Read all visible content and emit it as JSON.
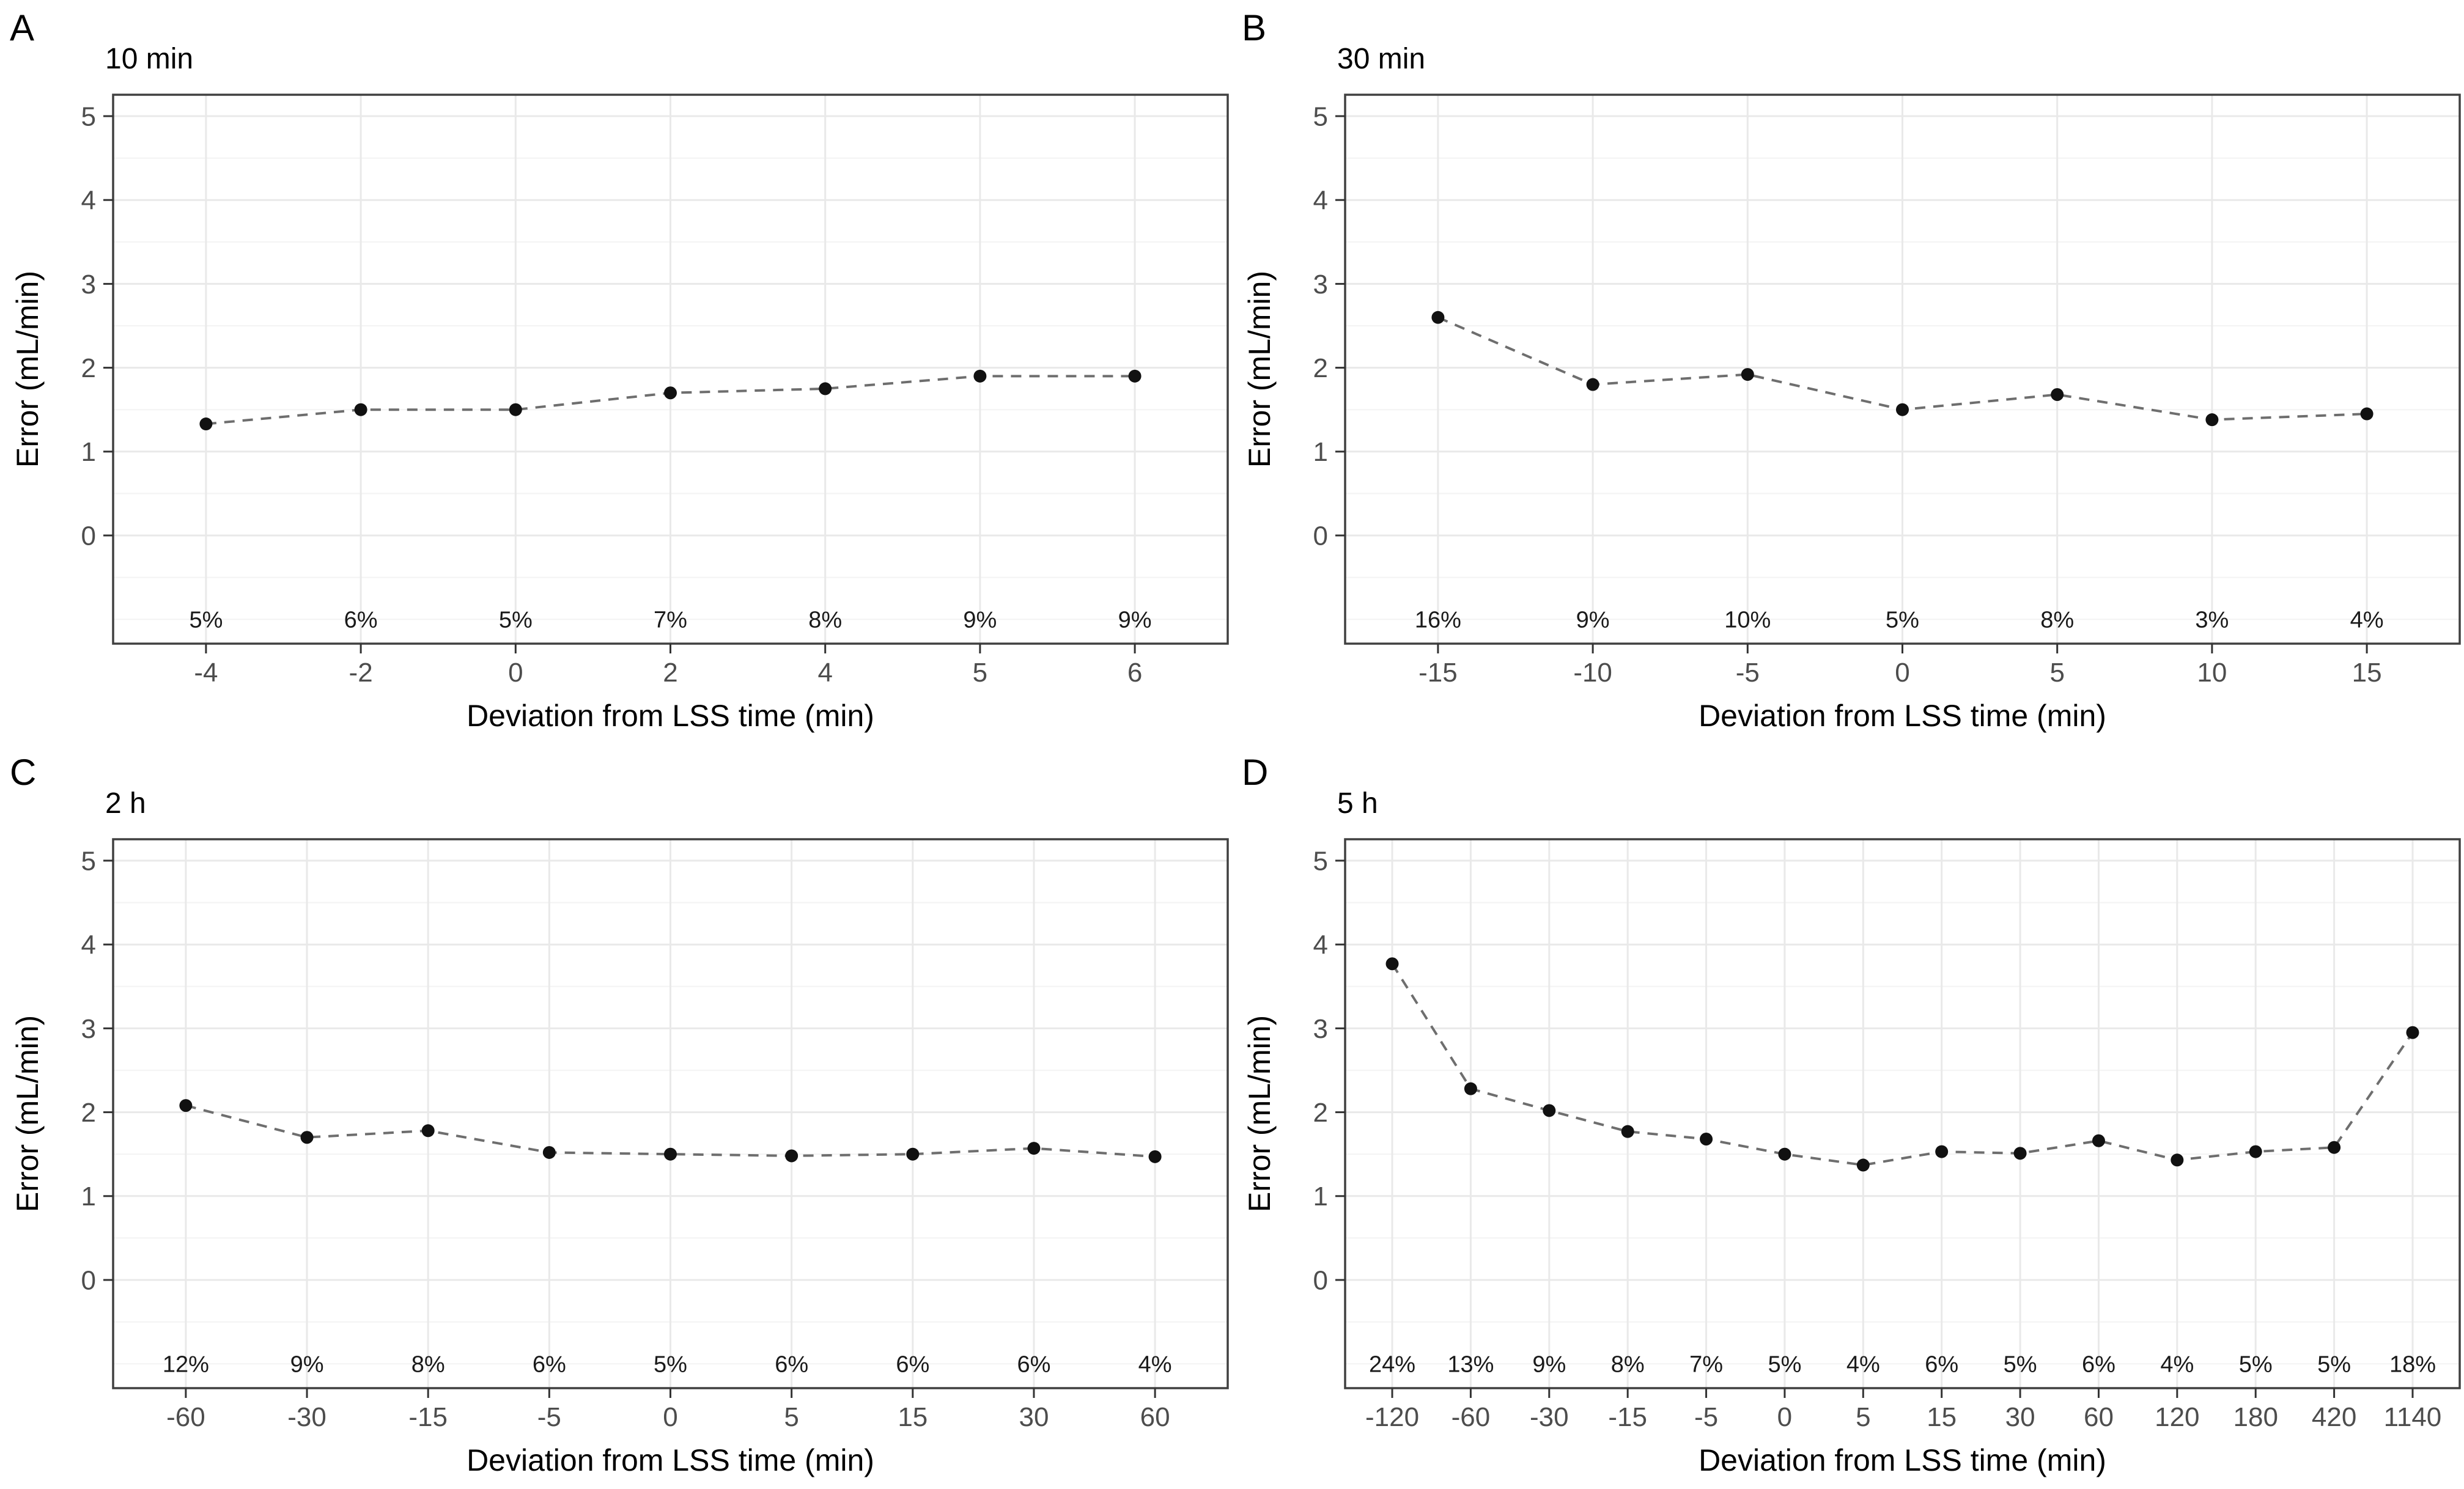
{
  "figure": {
    "xlabel": "Deviation from LSS time (min)",
    "ylabel": "Error (mL/min)",
    "yticks": [
      0,
      1,
      2,
      3,
      4,
      5
    ],
    "ylim": [
      -1.3,
      5.27
    ],
    "grid": true,
    "legend": "none",
    "colors": {
      "background": "#ffffff",
      "panel_border": "#404040",
      "grid_major": "#e9e9e9",
      "grid_minor": "#f4f4f4",
      "line": "#6e6e6e",
      "point": "#111111",
      "tick_label": "#4d4d4d",
      "tick_mark": "#333333",
      "text": "#000000"
    }
  },
  "chart_data": [
    {
      "type": "line",
      "panel_tag": "A",
      "title": "10 min",
      "xlabel": "Deviation from LSS time (min)",
      "ylabel": "Error (mL/min)",
      "line_style": "dashed",
      "categories": [
        "-4",
        "-2",
        "0",
        "2",
        "4",
        "5",
        "6"
      ],
      "values": [
        1.33,
        1.5,
        1.5,
        1.7,
        1.75,
        1.9,
        1.9
      ],
      "percent_labels": [
        "5%",
        "6%",
        "5%",
        "7%",
        "8%",
        "9%",
        "9%"
      ],
      "ylim": [
        -1.3,
        5.27
      ],
      "yticks": [
        0,
        1,
        2,
        3,
        4,
        5
      ]
    },
    {
      "type": "line",
      "panel_tag": "B",
      "title": "30 min",
      "xlabel": "Deviation from LSS time (min)",
      "ylabel": "Error (mL/min)",
      "line_style": "dashed",
      "categories": [
        "-15",
        "-10",
        "-5",
        "0",
        "5",
        "10",
        "15"
      ],
      "values": [
        2.6,
        1.8,
        1.92,
        1.5,
        1.68,
        1.38,
        1.45
      ],
      "percent_labels": [
        "16%",
        "9%",
        "10%",
        "5%",
        "8%",
        "3%",
        "4%"
      ],
      "ylim": [
        -1.3,
        5.27
      ],
      "yticks": [
        0,
        1,
        2,
        3,
        4,
        5
      ]
    },
    {
      "type": "line",
      "panel_tag": "C",
      "title": "2 h",
      "xlabel": "Deviation from LSS time (min)",
      "ylabel": "Error (mL/min)",
      "line_style": "dashed",
      "categories": [
        "-60",
        "-30",
        "-15",
        "-5",
        "0",
        "5",
        "15",
        "30",
        "60"
      ],
      "values": [
        2.08,
        1.7,
        1.78,
        1.52,
        1.5,
        1.48,
        1.5,
        1.57,
        1.47
      ],
      "percent_labels": [
        "12%",
        "9%",
        "8%",
        "6%",
        "5%",
        "6%",
        "6%",
        "6%",
        "4%"
      ],
      "ylim": [
        -1.3,
        5.27
      ],
      "yticks": [
        0,
        1,
        2,
        3,
        4,
        5
      ]
    },
    {
      "type": "line",
      "panel_tag": "D",
      "title": "5 h",
      "xlabel": "Deviation from LSS time (min)",
      "ylabel": "Error (mL/min)",
      "line_style": "dashed",
      "categories": [
        "-120",
        "-60",
        "-30",
        "-15",
        "-5",
        "0",
        "5",
        "15",
        "30",
        "60",
        "120",
        "180",
        "420",
        "1140"
      ],
      "values": [
        3.77,
        2.28,
        2.02,
        1.77,
        1.68,
        1.5,
        1.37,
        1.53,
        1.51,
        1.66,
        1.43,
        1.53,
        1.58,
        2.95
      ],
      "percent_labels": [
        "24%",
        "13%",
        "9%",
        "8%",
        "7%",
        "5%",
        "4%",
        "6%",
        "5%",
        "6%",
        "4%",
        "5%",
        "5%",
        "18%"
      ],
      "ylim": [
        -1.3,
        5.27
      ],
      "yticks": [
        0,
        1,
        2,
        3,
        4,
        5
      ]
    }
  ]
}
